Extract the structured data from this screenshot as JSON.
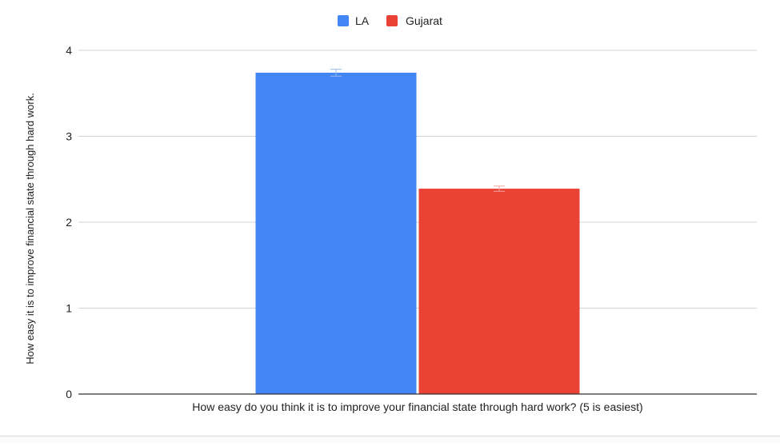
{
  "colors": {
    "series_la": "#4285F4",
    "series_gujarat": "#EA4335",
    "gridline": "#d3d3d3",
    "baseline": "#333333",
    "text": "#222222"
  },
  "chart_data": {
    "type": "bar",
    "title": "",
    "xlabel": "How easy do you think it is to improve your financial state through hard work? (5 is easiest)",
    "ylabel": "How easy it is to improve financial state through hard work.",
    "ylim": [
      0,
      4
    ],
    "yticks": [
      "0",
      "1",
      "2",
      "3",
      "4"
    ],
    "grid": true,
    "legend_position": "top",
    "categories": [
      ""
    ],
    "series": [
      {
        "name": "LA",
        "values": [
          3.74
        ],
        "error": [
          0.04
        ]
      },
      {
        "name": "Gujarat",
        "values": [
          2.39
        ],
        "error": [
          0.03
        ]
      }
    ]
  }
}
